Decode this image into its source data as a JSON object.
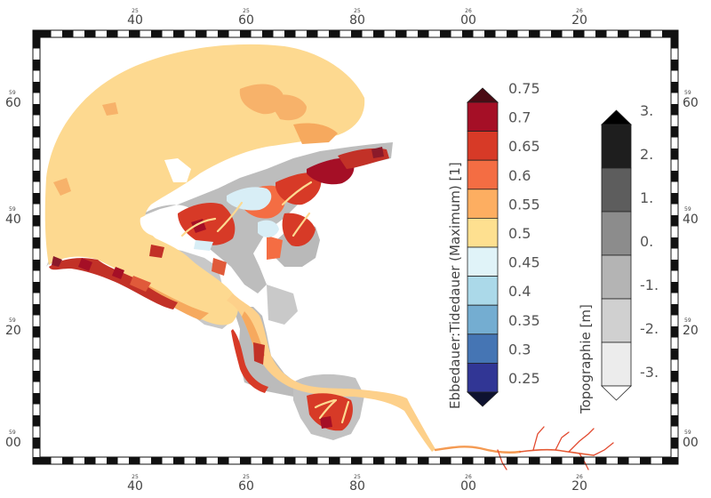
{
  "frame": {
    "top_ticks": [
      {
        "small": "25",
        "big": "40"
      },
      {
        "small": "25",
        "big": "60"
      },
      {
        "small": "25",
        "big": "80"
      },
      {
        "small": "26",
        "big": "00"
      },
      {
        "small": "26",
        "big": "20"
      }
    ],
    "bottom_ticks": [
      {
        "small": "25",
        "big": "40"
      },
      {
        "small": "25",
        "big": "60"
      },
      {
        "small": "25",
        "big": "80"
      },
      {
        "small": "26",
        "big": "00"
      },
      {
        "small": "26",
        "big": "20"
      }
    ],
    "left_ticks": [
      {
        "small": "59",
        "big": "60"
      },
      {
        "small": "59",
        "big": "40"
      },
      {
        "small": "59",
        "big": "20"
      },
      {
        "small": "59",
        "big": "00"
      }
    ],
    "right_ticks": [
      {
        "small": "59",
        "big": "60"
      },
      {
        "small": "59",
        "big": "40"
      },
      {
        "small": "59",
        "big": "20"
      },
      {
        "small": "59",
        "big": "00"
      }
    ]
  },
  "legend_ratio": {
    "title": "Ebbedauer:Tidedauer (Maximum) [1]",
    "labels": [
      "0.75",
      "0.7",
      "0.65",
      "0.6",
      "0.55",
      "0.5",
      "0.45",
      "0.4",
      "0.35",
      "0.3",
      "0.25"
    ],
    "colors": [
      "#a50f26",
      "#d73a27",
      "#f46d43",
      "#fdae61",
      "#fee090",
      "#e0f3f8",
      "#abd9e9",
      "#74add1",
      "#4575b4",
      "#313695"
    ],
    "over_color": "#4a0b14",
    "under_color": "#0e1230"
  },
  "legend_topo": {
    "title": "Topographie [m]",
    "labels": [
      "3.",
      "2.",
      "1.",
      "0.",
      "-1.",
      "-2.",
      "-3."
    ],
    "colors": [
      "#1e1e1e",
      "#5d5d5d",
      "#8c8c8c",
      "#b4b4b4",
      "#d0d0d0",
      "#ececec"
    ],
    "over_color": "#000000",
    "under_color": "#ffffff"
  }
}
